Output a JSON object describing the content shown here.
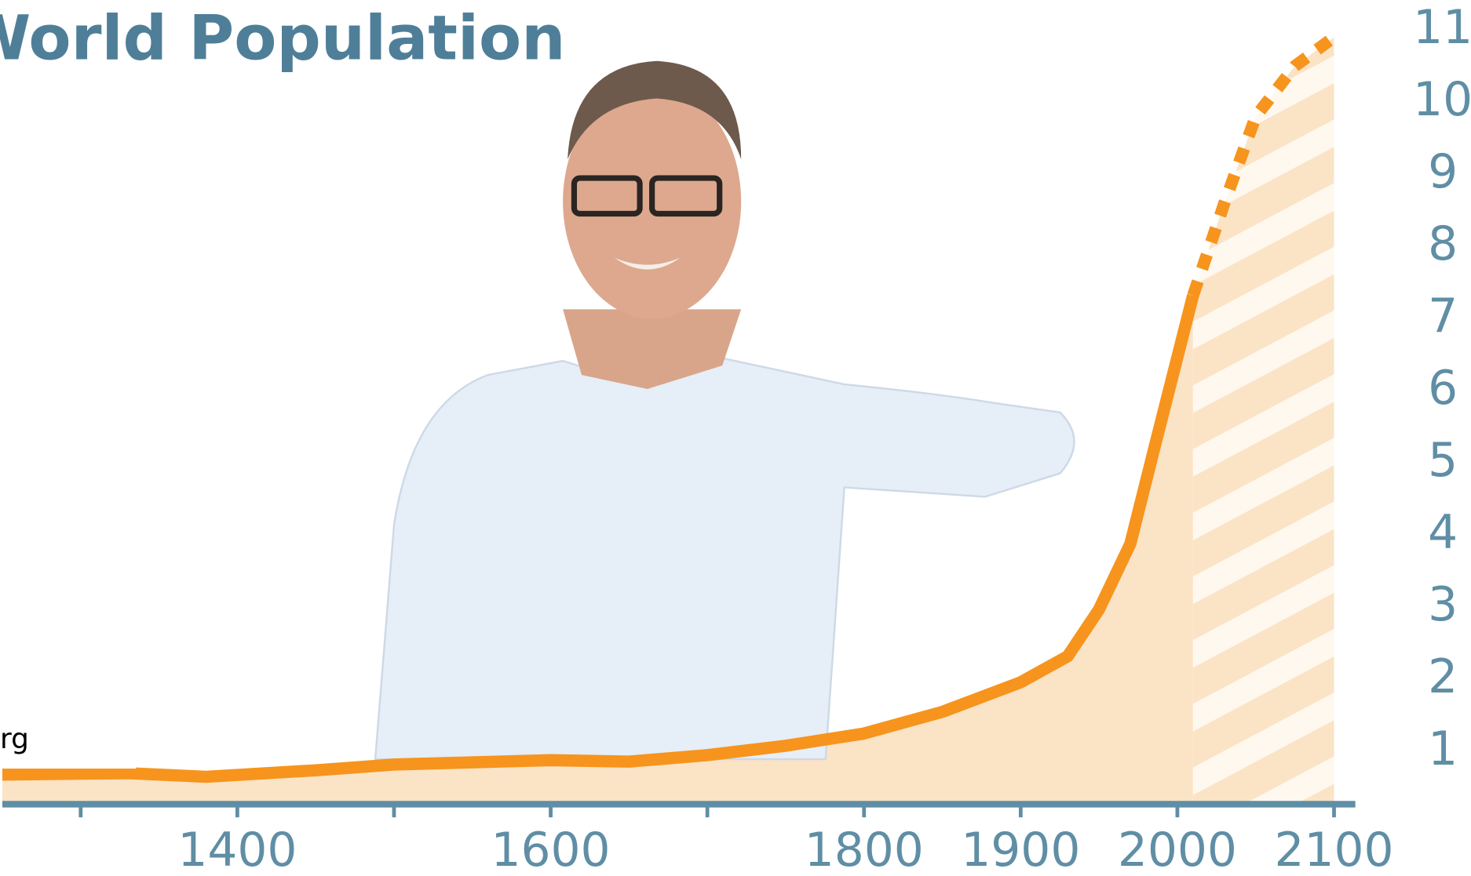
{
  "chart_data": {
    "type": "line",
    "title": "World Population",
    "annotation": "rg",
    "xlim": [
      1250,
      2110
    ],
    "ylim": [
      0.27,
      11.4
    ],
    "xticks": [
      1400,
      1600,
      1800,
      1900,
      2000,
      2100
    ],
    "x_minor_ticks": [
      1300,
      1500,
      1700
    ],
    "yticks": [
      1,
      2,
      3,
      4,
      5,
      6,
      7,
      8,
      9,
      10,
      11
    ],
    "area_color": "#fbe3c6",
    "axis_color": "#5f8ea5",
    "series": [
      {
        "color": "#f7941d",
        "x": [
          1250,
          1330,
          1380,
          1450,
          1500,
          1600,
          1650,
          1700,
          1750,
          1800,
          1850,
          1900,
          1930,
          1950,
          1970,
          1985,
          2010
        ],
        "values": [
          0.68,
          0.7,
          0.65,
          0.74,
          0.82,
          0.88,
          0.86,
          0.95,
          1.08,
          1.25,
          1.55,
          1.96,
          2.32,
          2.97,
          3.88,
          5.18,
          7.32
        ]
      },
      {
        "color": "#f7941d",
        "dashed": true,
        "x": [
          2010,
          2030,
          2050,
          2075,
          2100
        ],
        "values": [
          7.32,
          8.6,
          9.8,
          10.5,
          10.9
        ]
      }
    ]
  }
}
